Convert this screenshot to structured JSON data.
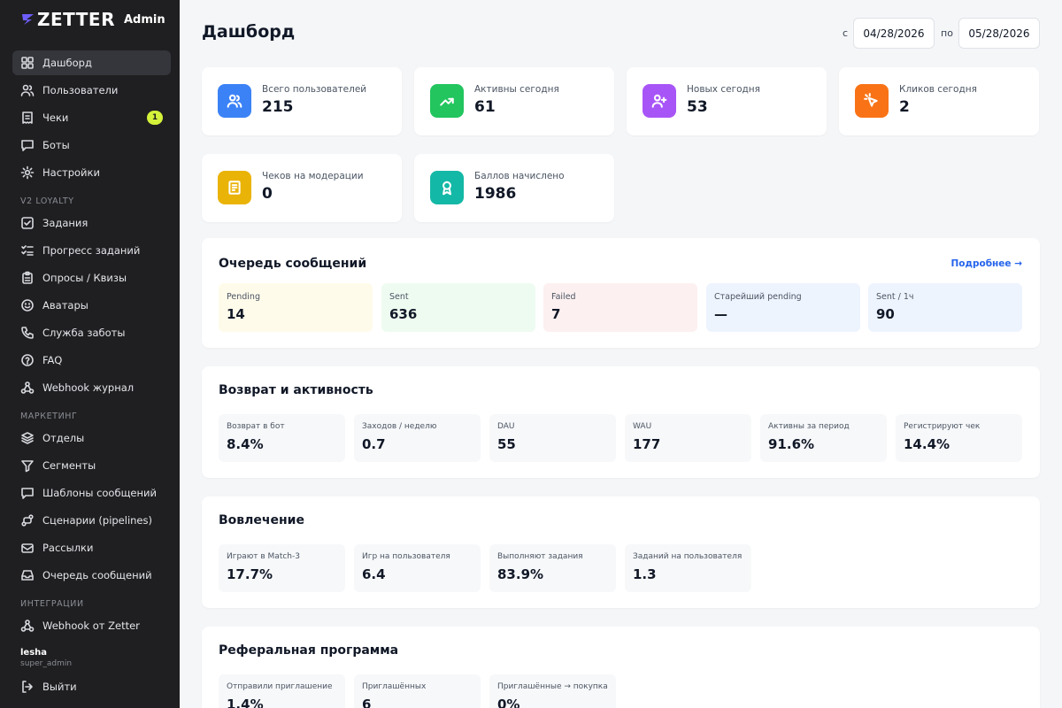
{
  "brand": {
    "logo_text": "ZETTER",
    "suffix": "Admin"
  },
  "sidebar": {
    "items": [
      {
        "label": "Дашборд",
        "icon": "grid-icon",
        "active": true
      },
      {
        "label": "Пользователи",
        "icon": "users-icon"
      },
      {
        "label": "Чеки",
        "icon": "receipt-icon",
        "badge": "1"
      },
      {
        "label": "Боты",
        "icon": "chat-icon"
      },
      {
        "label": "Настройки",
        "icon": "gear-icon"
      }
    ],
    "section_loyalty": "V2 LOYALTY",
    "loyalty_items": [
      {
        "label": "Задания",
        "icon": "checkbox-icon"
      },
      {
        "label": "Прогресс заданий",
        "icon": "list-check-icon"
      },
      {
        "label": "Опросы / Квизы",
        "icon": "clipboard-icon"
      },
      {
        "label": "Аватары",
        "icon": "smile-icon"
      },
      {
        "label": "Служба заботы",
        "icon": "phone-icon"
      },
      {
        "label": "FAQ",
        "icon": "help-icon"
      },
      {
        "label": "Webhook журнал",
        "icon": "webhook-icon"
      }
    ],
    "section_marketing": "МАРКЕТИНГ",
    "marketing_items": [
      {
        "label": "Отделы",
        "icon": "layers-icon"
      },
      {
        "label": "Сегменты",
        "icon": "filter-icon"
      },
      {
        "label": "Шаблоны сообщений",
        "icon": "message-icon"
      },
      {
        "label": "Сценарии (pipelines)",
        "icon": "route-icon"
      },
      {
        "label": "Рассылки",
        "icon": "send-icon"
      },
      {
        "label": "Очередь сообщений",
        "icon": "inbox-icon"
      }
    ],
    "section_integrations": "ИНТЕГРАЦИИ",
    "integration_items": [
      {
        "label": "Webhook от Zetter",
        "icon": "webhook-icon"
      }
    ],
    "user": {
      "name": "lesha",
      "role": "super_admin"
    },
    "logout": "Выйти"
  },
  "header": {
    "title": "Дашборд",
    "from_label": "с",
    "from_date": "04/28/2026",
    "to_label": "по",
    "to_date": "05/28/2026"
  },
  "stats": [
    {
      "label": "Всего пользователей",
      "value": "215",
      "color": "#3b82f6",
      "icon": "users-icon"
    },
    {
      "label": "Активны сегодня",
      "value": "61",
      "color": "#22c55e",
      "icon": "trend-up-icon"
    },
    {
      "label": "Новых сегодня",
      "value": "53",
      "color": "#a855f7",
      "icon": "user-plus-icon"
    },
    {
      "label": "Кликов сегодня",
      "value": "2",
      "color": "#f97316",
      "icon": "cursor-click-icon"
    },
    {
      "label": "Чеков на модерации",
      "value": "0",
      "color": "#eab308",
      "icon": "receipt-icon"
    },
    {
      "label": "Баллов начислено",
      "value": "1986",
      "color": "#14b8a6",
      "icon": "award-icon"
    }
  ],
  "queue": {
    "title": "Очередь сообщений",
    "link": "Подробнее →",
    "items": [
      {
        "label": "Pending",
        "value": "14",
        "bg": "#fffbea"
      },
      {
        "label": "Sent",
        "value": "636",
        "bg": "#eefbf1"
      },
      {
        "label": "Failed",
        "value": "7",
        "bg": "#fdf0f0"
      },
      {
        "label": "Старейший pending",
        "value": "—",
        "bg": "#eef4fe"
      },
      {
        "label": "Sent / 1ч",
        "value": "90",
        "bg": "#eef4fe"
      }
    ]
  },
  "retention": {
    "title": "Возврат и активность",
    "items": [
      {
        "label": "Возврат в бот",
        "value": "8.4%"
      },
      {
        "label": "Заходов / неделю",
        "value": "0.7"
      },
      {
        "label": "DAU",
        "value": "55"
      },
      {
        "label": "WAU",
        "value": "177"
      },
      {
        "label": "Активны за период",
        "value": "91.6%"
      },
      {
        "label": "Регистрируют чек",
        "value": "14.4%"
      }
    ]
  },
  "engagement": {
    "title": "Вовлечение",
    "items": [
      {
        "label": "Играют в Match-3",
        "value": "17.7%"
      },
      {
        "label": "Игр на пользователя",
        "value": "6.4"
      },
      {
        "label": "Выполняют задания",
        "value": "83.9%"
      },
      {
        "label": "Заданий на пользователя",
        "value": "1.3"
      }
    ]
  },
  "referral": {
    "title": "Реферальная программа",
    "items": [
      {
        "label": "Отправили приглашение",
        "value": "1.4%"
      },
      {
        "label": "Приглашённых",
        "value": "6"
      },
      {
        "label": "Приглашённые → покупка",
        "value": "0%"
      }
    ]
  }
}
